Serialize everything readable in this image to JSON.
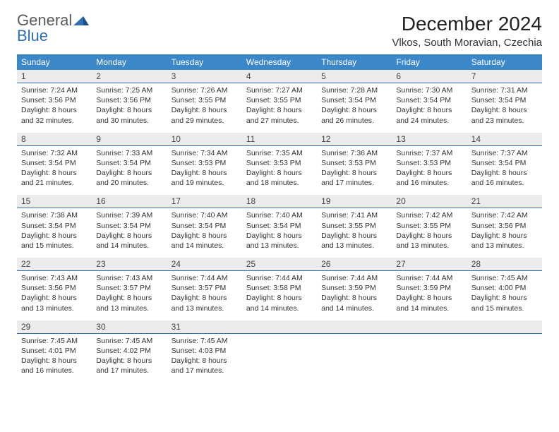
{
  "brand": {
    "general": "General",
    "blue": "Blue"
  },
  "title": "December 2024",
  "location": "Vlkos, South Moravian, Czechia",
  "colors": {
    "header_bg": "#3b87c8",
    "header_text": "#ffffff",
    "daynum_bg": "#ececec",
    "daynum_border": "#2f6fb0",
    "body_bg": "#ffffff",
    "logo_gray": "#5a5a5a",
    "logo_blue": "#2f6fb0"
  },
  "typography": {
    "title_fontsize": 28,
    "location_fontsize": 15,
    "day_header_fontsize": 12,
    "body_fontsize": 10.5
  },
  "day_headers": [
    "Sunday",
    "Monday",
    "Tuesday",
    "Wednesday",
    "Thursday",
    "Friday",
    "Saturday"
  ],
  "weeks": [
    [
      {
        "n": "1",
        "sunrise": "Sunrise: 7:24 AM",
        "sunset": "Sunset: 3:56 PM",
        "day1": "Daylight: 8 hours",
        "day2": "and 32 minutes."
      },
      {
        "n": "2",
        "sunrise": "Sunrise: 7:25 AM",
        "sunset": "Sunset: 3:56 PM",
        "day1": "Daylight: 8 hours",
        "day2": "and 30 minutes."
      },
      {
        "n": "3",
        "sunrise": "Sunrise: 7:26 AM",
        "sunset": "Sunset: 3:55 PM",
        "day1": "Daylight: 8 hours",
        "day2": "and 29 minutes."
      },
      {
        "n": "4",
        "sunrise": "Sunrise: 7:27 AM",
        "sunset": "Sunset: 3:55 PM",
        "day1": "Daylight: 8 hours",
        "day2": "and 27 minutes."
      },
      {
        "n": "5",
        "sunrise": "Sunrise: 7:28 AM",
        "sunset": "Sunset: 3:54 PM",
        "day1": "Daylight: 8 hours",
        "day2": "and 26 minutes."
      },
      {
        "n": "6",
        "sunrise": "Sunrise: 7:30 AM",
        "sunset": "Sunset: 3:54 PM",
        "day1": "Daylight: 8 hours",
        "day2": "and 24 minutes."
      },
      {
        "n": "7",
        "sunrise": "Sunrise: 7:31 AM",
        "sunset": "Sunset: 3:54 PM",
        "day1": "Daylight: 8 hours",
        "day2": "and 23 minutes."
      }
    ],
    [
      {
        "n": "8",
        "sunrise": "Sunrise: 7:32 AM",
        "sunset": "Sunset: 3:54 PM",
        "day1": "Daylight: 8 hours",
        "day2": "and 21 minutes."
      },
      {
        "n": "9",
        "sunrise": "Sunrise: 7:33 AM",
        "sunset": "Sunset: 3:54 PM",
        "day1": "Daylight: 8 hours",
        "day2": "and 20 minutes."
      },
      {
        "n": "10",
        "sunrise": "Sunrise: 7:34 AM",
        "sunset": "Sunset: 3:53 PM",
        "day1": "Daylight: 8 hours",
        "day2": "and 19 minutes."
      },
      {
        "n": "11",
        "sunrise": "Sunrise: 7:35 AM",
        "sunset": "Sunset: 3:53 PM",
        "day1": "Daylight: 8 hours",
        "day2": "and 18 minutes."
      },
      {
        "n": "12",
        "sunrise": "Sunrise: 7:36 AM",
        "sunset": "Sunset: 3:53 PM",
        "day1": "Daylight: 8 hours",
        "day2": "and 17 minutes."
      },
      {
        "n": "13",
        "sunrise": "Sunrise: 7:37 AM",
        "sunset": "Sunset: 3:53 PM",
        "day1": "Daylight: 8 hours",
        "day2": "and 16 minutes."
      },
      {
        "n": "14",
        "sunrise": "Sunrise: 7:37 AM",
        "sunset": "Sunset: 3:54 PM",
        "day1": "Daylight: 8 hours",
        "day2": "and 16 minutes."
      }
    ],
    [
      {
        "n": "15",
        "sunrise": "Sunrise: 7:38 AM",
        "sunset": "Sunset: 3:54 PM",
        "day1": "Daylight: 8 hours",
        "day2": "and 15 minutes."
      },
      {
        "n": "16",
        "sunrise": "Sunrise: 7:39 AM",
        "sunset": "Sunset: 3:54 PM",
        "day1": "Daylight: 8 hours",
        "day2": "and 14 minutes."
      },
      {
        "n": "17",
        "sunrise": "Sunrise: 7:40 AM",
        "sunset": "Sunset: 3:54 PM",
        "day1": "Daylight: 8 hours",
        "day2": "and 14 minutes."
      },
      {
        "n": "18",
        "sunrise": "Sunrise: 7:40 AM",
        "sunset": "Sunset: 3:54 PM",
        "day1": "Daylight: 8 hours",
        "day2": "and 13 minutes."
      },
      {
        "n": "19",
        "sunrise": "Sunrise: 7:41 AM",
        "sunset": "Sunset: 3:55 PM",
        "day1": "Daylight: 8 hours",
        "day2": "and 13 minutes."
      },
      {
        "n": "20",
        "sunrise": "Sunrise: 7:42 AM",
        "sunset": "Sunset: 3:55 PM",
        "day1": "Daylight: 8 hours",
        "day2": "and 13 minutes."
      },
      {
        "n": "21",
        "sunrise": "Sunrise: 7:42 AM",
        "sunset": "Sunset: 3:56 PM",
        "day1": "Daylight: 8 hours",
        "day2": "and 13 minutes."
      }
    ],
    [
      {
        "n": "22",
        "sunrise": "Sunrise: 7:43 AM",
        "sunset": "Sunset: 3:56 PM",
        "day1": "Daylight: 8 hours",
        "day2": "and 13 minutes."
      },
      {
        "n": "23",
        "sunrise": "Sunrise: 7:43 AM",
        "sunset": "Sunset: 3:57 PM",
        "day1": "Daylight: 8 hours",
        "day2": "and 13 minutes."
      },
      {
        "n": "24",
        "sunrise": "Sunrise: 7:44 AM",
        "sunset": "Sunset: 3:57 PM",
        "day1": "Daylight: 8 hours",
        "day2": "and 13 minutes."
      },
      {
        "n": "25",
        "sunrise": "Sunrise: 7:44 AM",
        "sunset": "Sunset: 3:58 PM",
        "day1": "Daylight: 8 hours",
        "day2": "and 14 minutes."
      },
      {
        "n": "26",
        "sunrise": "Sunrise: 7:44 AM",
        "sunset": "Sunset: 3:59 PM",
        "day1": "Daylight: 8 hours",
        "day2": "and 14 minutes."
      },
      {
        "n": "27",
        "sunrise": "Sunrise: 7:44 AM",
        "sunset": "Sunset: 3:59 PM",
        "day1": "Daylight: 8 hours",
        "day2": "and 14 minutes."
      },
      {
        "n": "28",
        "sunrise": "Sunrise: 7:45 AM",
        "sunset": "Sunset: 4:00 PM",
        "day1": "Daylight: 8 hours",
        "day2": "and 15 minutes."
      }
    ],
    [
      {
        "n": "29",
        "sunrise": "Sunrise: 7:45 AM",
        "sunset": "Sunset: 4:01 PM",
        "day1": "Daylight: 8 hours",
        "day2": "and 16 minutes."
      },
      {
        "n": "30",
        "sunrise": "Sunrise: 7:45 AM",
        "sunset": "Sunset: 4:02 PM",
        "day1": "Daylight: 8 hours",
        "day2": "and 17 minutes."
      },
      {
        "n": "31",
        "sunrise": "Sunrise: 7:45 AM",
        "sunset": "Sunset: 4:03 PM",
        "day1": "Daylight: 8 hours",
        "day2": "and 17 minutes."
      },
      {
        "n": "",
        "sunrise": "",
        "sunset": "",
        "day1": "",
        "day2": ""
      },
      {
        "n": "",
        "sunrise": "",
        "sunset": "",
        "day1": "",
        "day2": ""
      },
      {
        "n": "",
        "sunrise": "",
        "sunset": "",
        "day1": "",
        "day2": ""
      },
      {
        "n": "",
        "sunrise": "",
        "sunset": "",
        "day1": "",
        "day2": ""
      }
    ]
  ]
}
